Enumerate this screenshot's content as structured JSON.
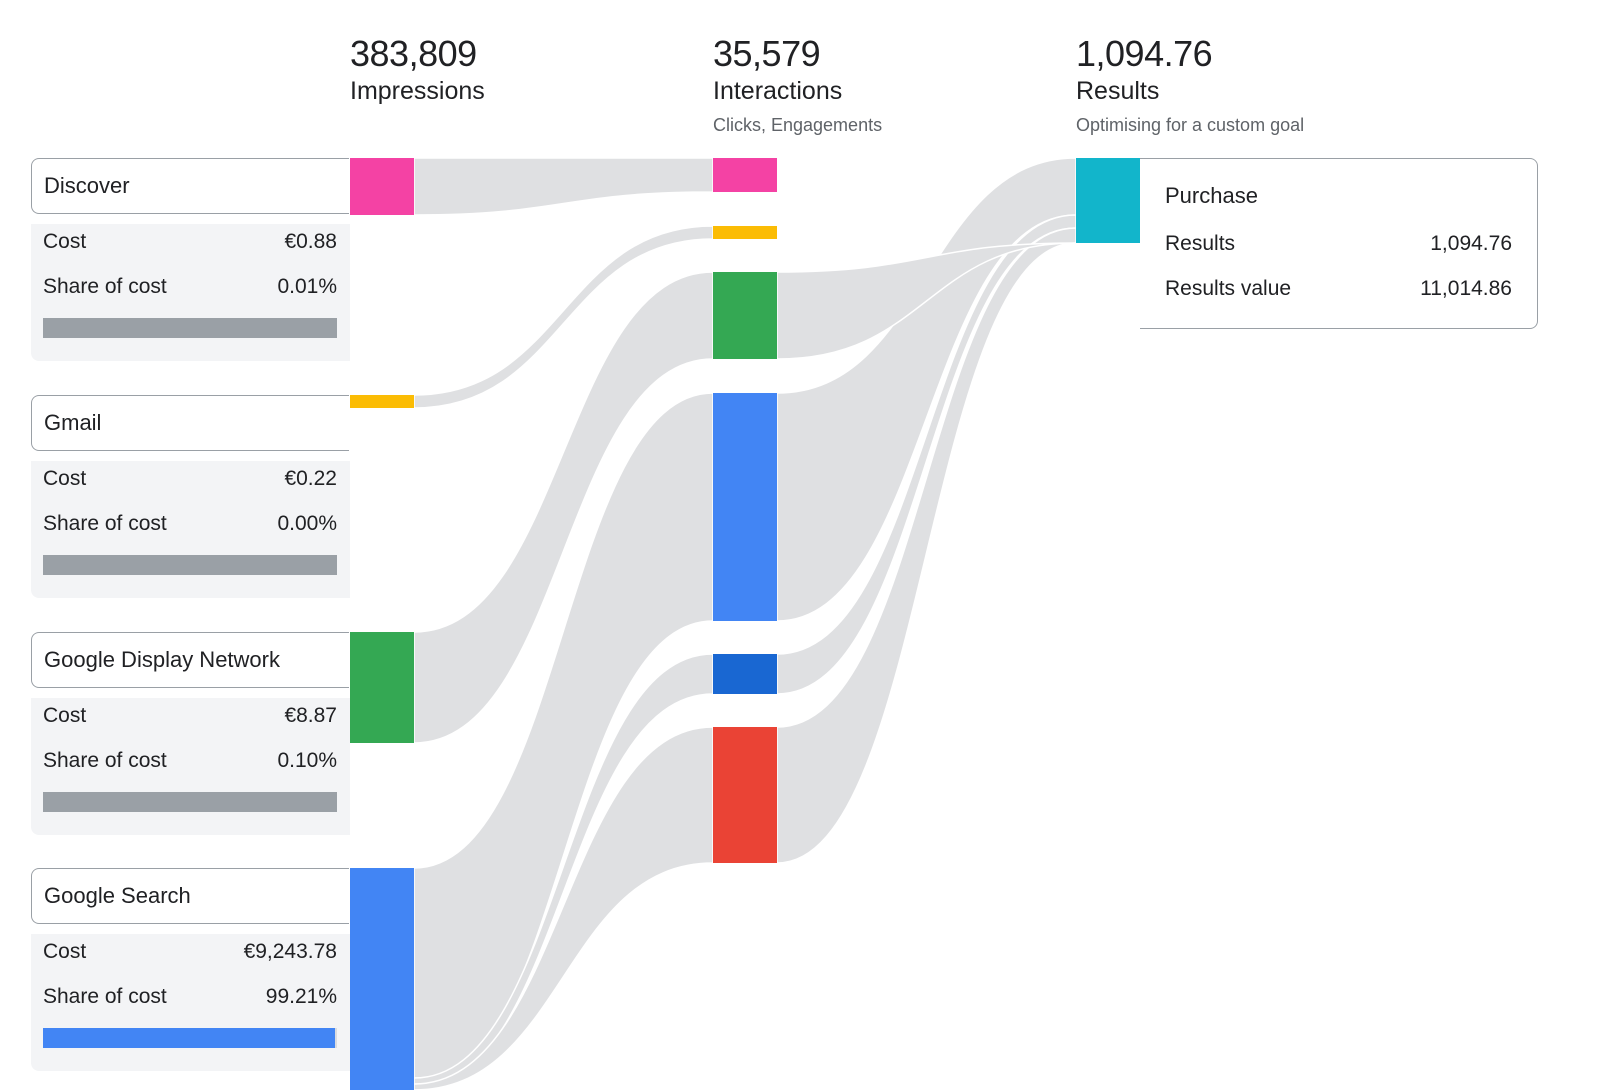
{
  "headers": {
    "impressions": {
      "value": "383,809",
      "label": "Impressions"
    },
    "interactions": {
      "value": "35,579",
      "label": "Interactions",
      "sub": "Clicks, Engagements"
    },
    "results": {
      "value": "1,094.76",
      "label": "Results",
      "sub": "Optimising for a custom goal"
    }
  },
  "channels": [
    {
      "name": "Discover",
      "cost_label": "Cost",
      "cost": "€0.88",
      "share_label": "Share of cost",
      "share": "0.01%",
      "share_fraction": 0.0001,
      "color": "#f442a4"
    },
    {
      "name": "Gmail",
      "cost_label": "Cost",
      "cost": "€0.22",
      "share_label": "Share of cost",
      "share": "0.00%",
      "share_fraction": 0.0,
      "color": "#fbbc04"
    },
    {
      "name": "Google Display Network",
      "cost_label": "Cost",
      "cost": "€8.87",
      "share_label": "Share of cost",
      "share": "0.10%",
      "share_fraction": 0.001,
      "color": "#34a853"
    },
    {
      "name": "Google Search",
      "cost_label": "Cost",
      "cost": "€9,243.78",
      "share_label": "Share of cost",
      "share": "99.21%",
      "share_fraction": 0.9921,
      "color": "#4285f4"
    }
  ],
  "result_card": {
    "title": "Purchase",
    "results_label": "Results",
    "results_value": "1,094.76",
    "value_label": "Results value",
    "value_value": "11,014.86"
  },
  "chart_data": {
    "type": "sankey",
    "stages": [
      "Impressions",
      "Interactions",
      "Results"
    ],
    "stage_totals": [
      383809,
      35579,
      1094.76
    ],
    "nodes": [
      {
        "stage": "Impressions",
        "name": "Discover",
        "color": "#f442a4"
      },
      {
        "stage": "Impressions",
        "name": "Gmail",
        "color": "#fbbc04"
      },
      {
        "stage": "Impressions",
        "name": "Google Display Network",
        "color": "#34a853"
      },
      {
        "stage": "Impressions",
        "name": "Google Search",
        "color": "#4285f4"
      },
      {
        "stage": "Interactions",
        "name": "Discover",
        "color": "#f442a4"
      },
      {
        "stage": "Interactions",
        "name": "Gmail",
        "color": "#fbbc04"
      },
      {
        "stage": "Interactions",
        "name": "Google Display Network",
        "color": "#34a853"
      },
      {
        "stage": "Interactions",
        "name": "Google Search",
        "color": "#4285f4"
      },
      {
        "stage": "Interactions",
        "name": "",
        "color": "#1967d2"
      },
      {
        "stage": "Interactions",
        "name": "",
        "color": "#ea4335"
      },
      {
        "stage": "Results",
        "name": "Purchase",
        "color": "#12b5cb"
      }
    ],
    "flow_color": "#dfe0e2",
    "flows": [
      {
        "from": 0,
        "to": 4
      },
      {
        "from": 1,
        "to": 5
      },
      {
        "from": 2,
        "to": 6
      },
      {
        "from": 3,
        "to": 7
      },
      {
        "from": 3,
        "to": 8
      },
      {
        "from": 3,
        "to": 9
      },
      {
        "from": 7,
        "to": 10
      },
      {
        "from": 8,
        "to": 10
      },
      {
        "from": 9,
        "to": 10
      },
      {
        "from": 6,
        "to": 10
      }
    ]
  }
}
